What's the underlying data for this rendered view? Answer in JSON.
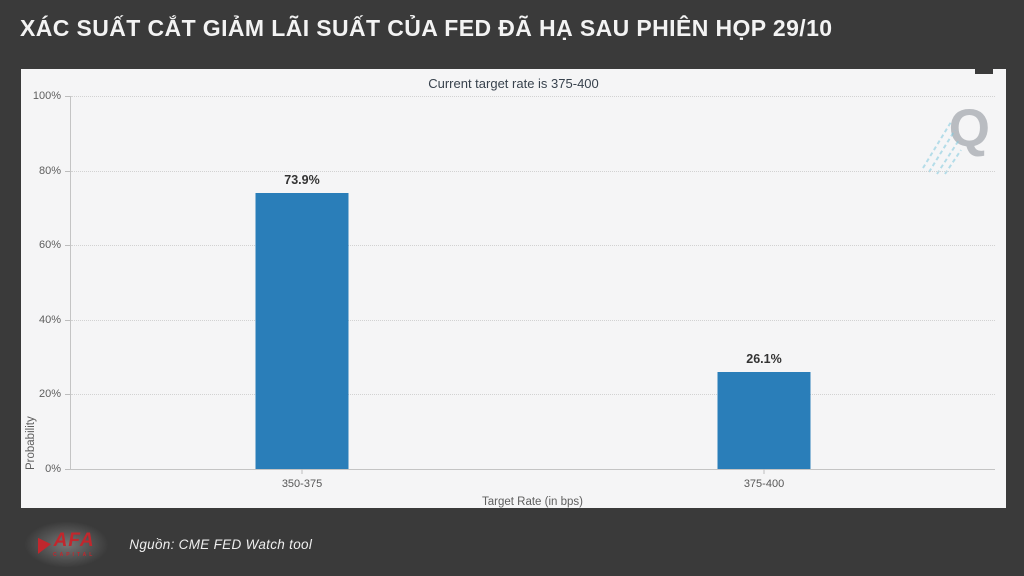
{
  "header": {
    "title": "XÁC SUẤT CẮT GIẢM LÃI SUẤT CỦA FED ĐÃ HẠ SAU PHIÊN HỌP 29/10"
  },
  "chart_data": {
    "type": "bar",
    "title": "Current target rate is 375-400",
    "categories": [
      "350-375",
      "375-400"
    ],
    "values": [
      73.9,
      26.1
    ],
    "value_labels": [
      "73.9%",
      "26.1%"
    ],
    "xlabel": "Target Rate (in bps)",
    "ylabel": "Probability",
    "ylim": [
      0,
      100
    ],
    "yticks": [
      0,
      20,
      40,
      60,
      80,
      100
    ],
    "ytick_labels": [
      "0%",
      "20%",
      "40%",
      "60%",
      "80%",
      "100%"
    ],
    "grid": "horizontal dotted",
    "legend": "none",
    "bar_color": "#2a7eb9"
  },
  "watermark": {
    "letter": "Q"
  },
  "footer": {
    "source": "Nguồn: CME FED Watch tool",
    "logo_text": "AFA",
    "logo_subtext": "CAPITAL"
  },
  "colors": {
    "background": "#3a3a3a",
    "panel": "#f5f5f6",
    "bar": "#2a7eb9",
    "logo_red": "#c1272d",
    "header_text": "#f3f3f3",
    "chart_title_text": "#38424d"
  }
}
